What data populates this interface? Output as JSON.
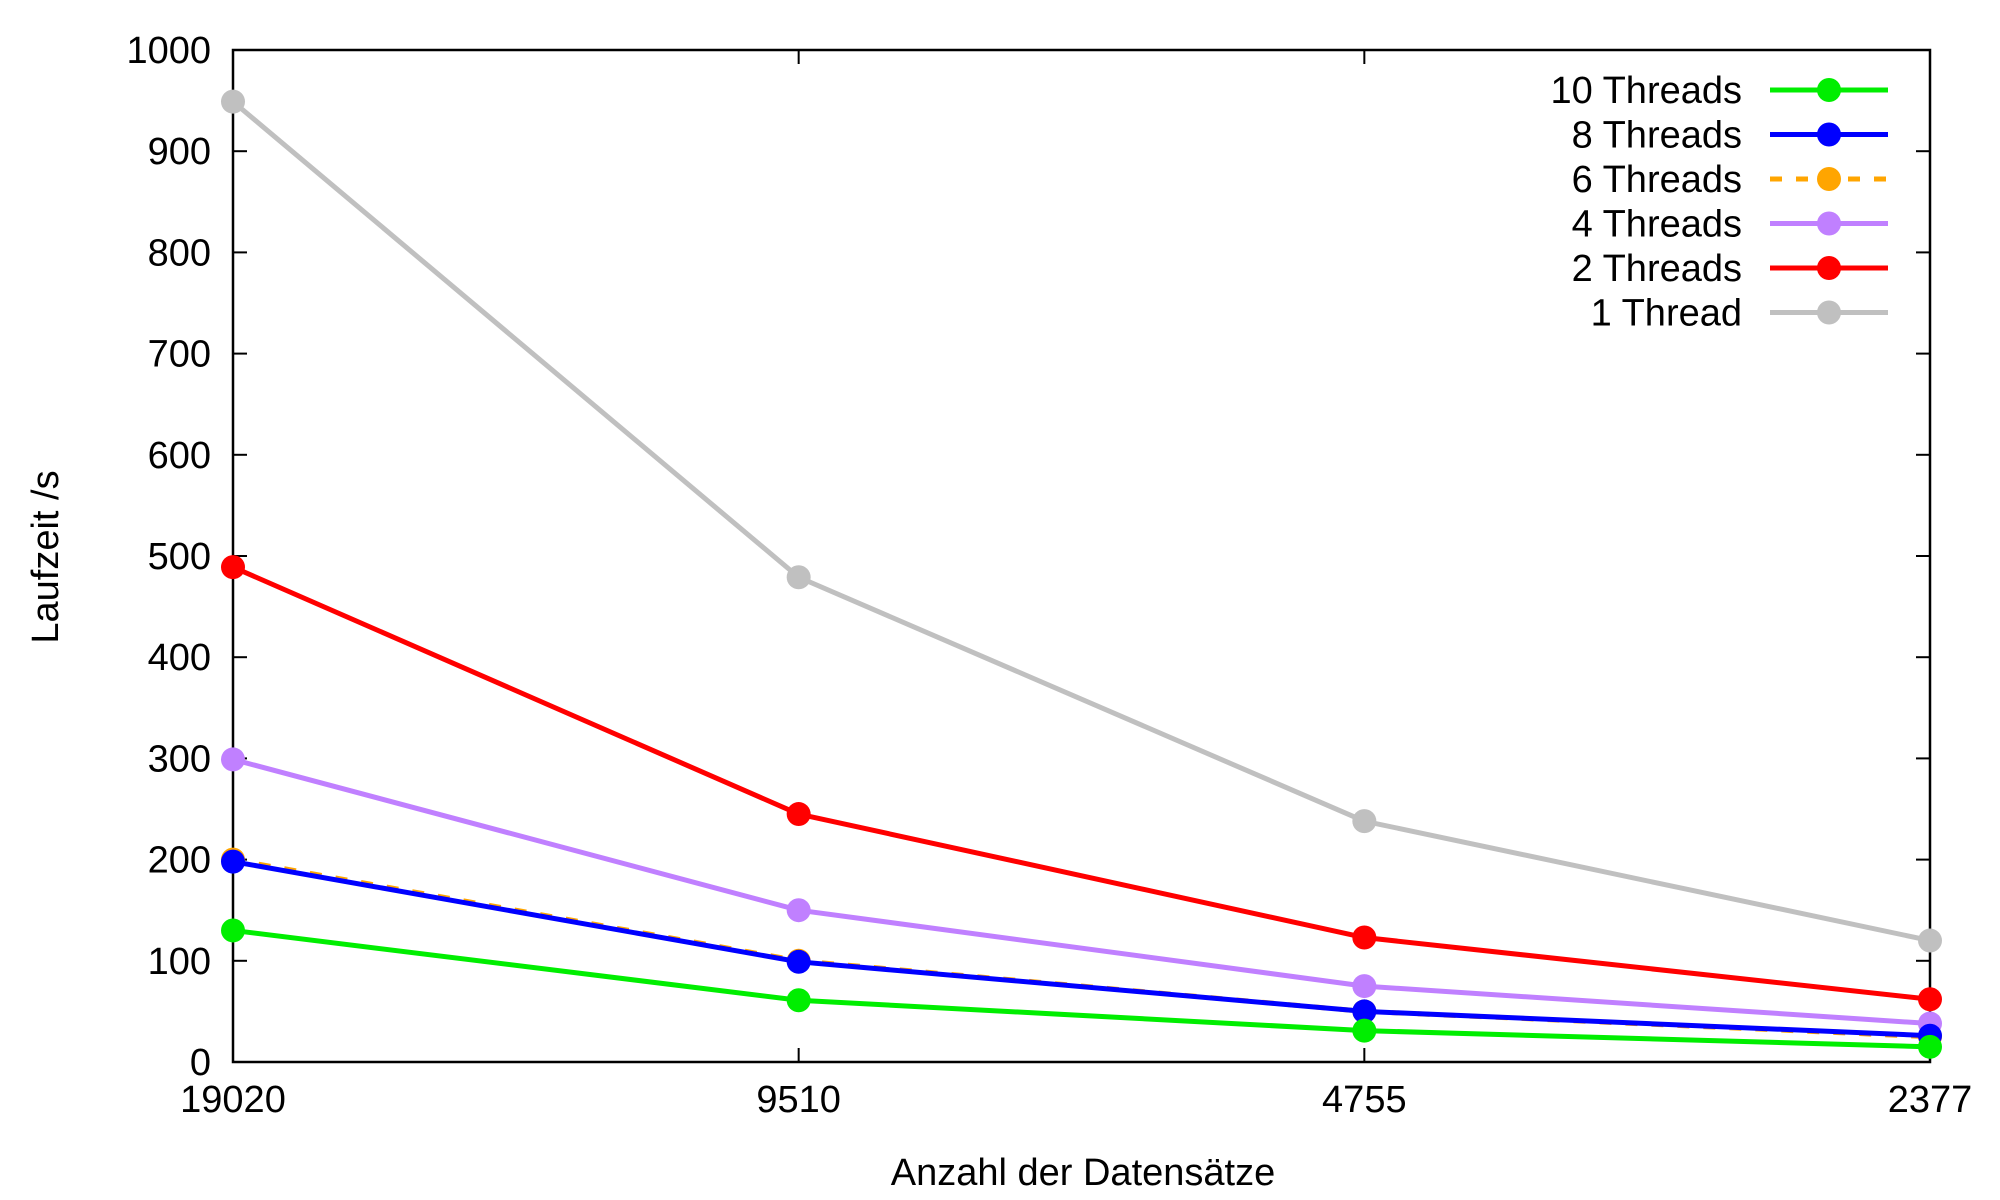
{
  "chart_data": {
    "type": "line",
    "title": "",
    "xlabel": "Anzahl der Datensätze",
    "ylabel": "Laufzeit /s",
    "categories": [
      "19020",
      "9510",
      "4755",
      "2377"
    ],
    "ylim": [
      0,
      1000
    ],
    "yticks": [
      "0",
      "100",
      "200",
      "300",
      "400",
      "500",
      "600",
      "700",
      "800",
      "900",
      "1000"
    ],
    "grid": false,
    "legend_position": "top-right",
    "series": [
      {
        "name": "10 Threads",
        "color": "#00ee00",
        "dashed": false,
        "values": [
          130,
          61,
          31,
          15
        ]
      },
      {
        "name": "8 Threads",
        "color": "#0000ff",
        "dashed": false,
        "values": [
          198,
          99,
          50,
          26
        ]
      },
      {
        "name": "6 Threads",
        "color": "#ffa500",
        "dashed": true,
        "values": [
          200,
          100,
          50,
          25
        ]
      },
      {
        "name": "4 Threads",
        "color": "#c080ff",
        "dashed": false,
        "values": [
          299,
          150,
          75,
          38
        ]
      },
      {
        "name": "2 Threads",
        "color": "#ff0000",
        "dashed": false,
        "values": [
          489,
          245,
          123,
          62
        ]
      },
      {
        "name": "1 Thread",
        "color": "#c0c0c0",
        "dashed": false,
        "values": [
          949,
          479,
          238,
          120
        ]
      }
    ]
  }
}
